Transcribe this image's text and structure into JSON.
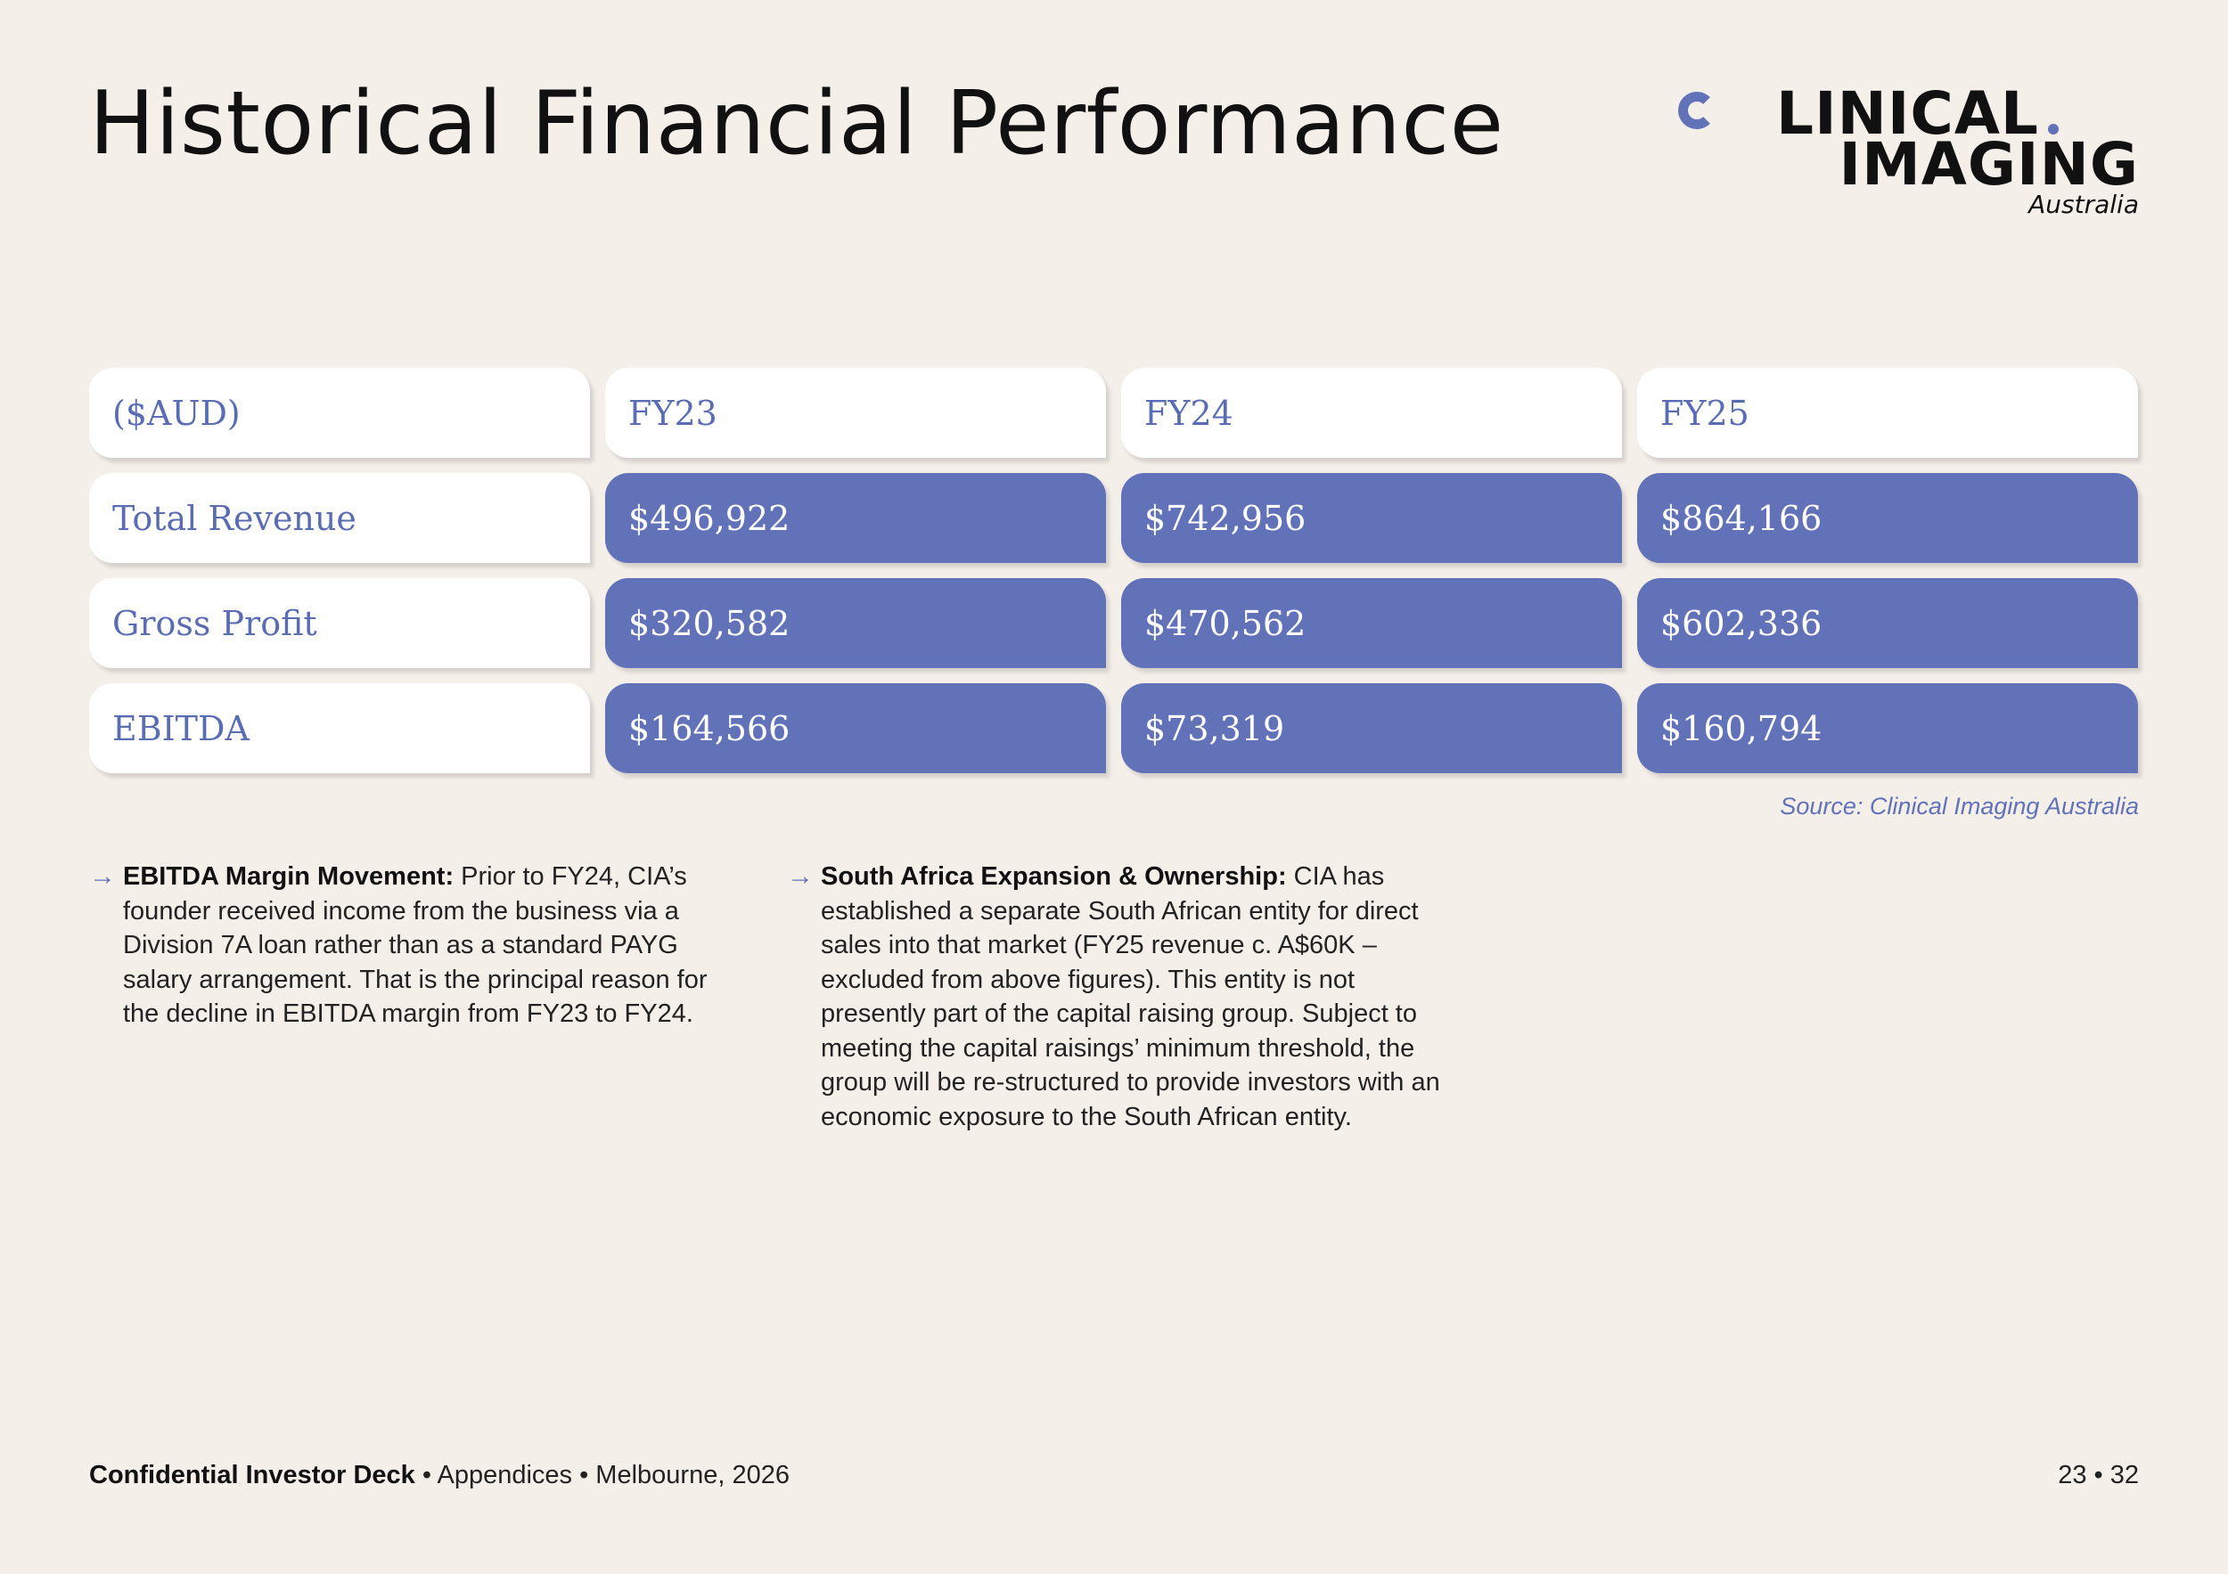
{
  "title": "Historical Financial Performance",
  "logo": {
    "line1": "LINICAL",
    "line2": "IMAGING",
    "line3": "Australia",
    "accent_color": "#6272b8"
  },
  "table": {
    "header": [
      "($AUD)",
      "FY23",
      "FY24",
      "FY25"
    ],
    "rows": [
      {
        "label": "Total Revenue",
        "values": [
          "$496,922",
          "$742,956",
          "$864,166"
        ]
      },
      {
        "label": "Gross Profit",
        "values": [
          "$320,582",
          "$470,562",
          "$602,336"
        ]
      },
      {
        "label": "EBITDA",
        "values": [
          "$164,566",
          "$73,319",
          "$160,794"
        ]
      }
    ]
  },
  "source": "Source: Clinical Imaging Australia",
  "notes": [
    {
      "icon": "arrow-right-icon",
      "heading": "EBITDA Margin Movement:",
      "text": "Prior to FY24, CIA’s founder received income from the business via a Division 7A loan rather than as a standard PAYG salary arrangement. That is the principal reason for the decline in EBITDA margin from FY23 to FY24."
    },
    {
      "icon": "arrow-right-icon",
      "heading": "South Africa Expansion & Ownership:",
      "text": "CIA has established a separate South African entity for direct sales into that market (FY25 revenue c. A$60K – excluded from above figures). This entity is not presently part of the capital raising group. Subject to meeting the capital raisings’ minimum threshold, the group will be re-structured to provide investors with an economic exposure to the South African entity."
    }
  ],
  "footer": {
    "deck": "Confidential Investor Deck",
    "rest": " • Appendices • Melbourne, 2026",
    "page": "23 • 32"
  }
}
